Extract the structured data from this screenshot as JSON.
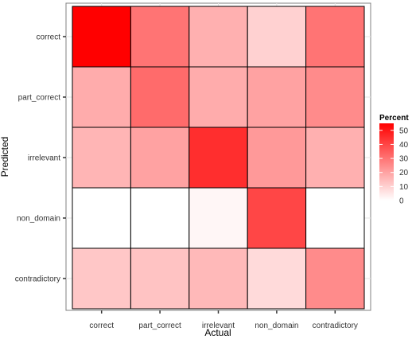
{
  "chart_data": {
    "type": "heatmap",
    "x_categories": [
      "correct",
      "part_correct",
      "irrelevant",
      "non_domain",
      "contradictory"
    ],
    "y_categories": [
      "correct",
      "part_correct",
      "irrelevant",
      "non_domain",
      "contradictory"
    ],
    "xlabel": "Actual",
    "ylabel": "Predicted",
    "values": [
      [
        55,
        30,
        17,
        10,
        30
      ],
      [
        18,
        32,
        18,
        20,
        25
      ],
      [
        16,
        20,
        45,
        22,
        17
      ],
      [
        0,
        0,
        2,
        40,
        0
      ],
      [
        12,
        13,
        15,
        8,
        25
      ]
    ],
    "color_range": [
      0,
      55
    ],
    "low_color": "#ffffff",
    "high_color": "#ff0000",
    "grid": true,
    "legend": {
      "title": "Percent",
      "breaks": [
        50,
        40,
        30,
        20,
        10,
        0
      ],
      "placement": "right"
    }
  }
}
